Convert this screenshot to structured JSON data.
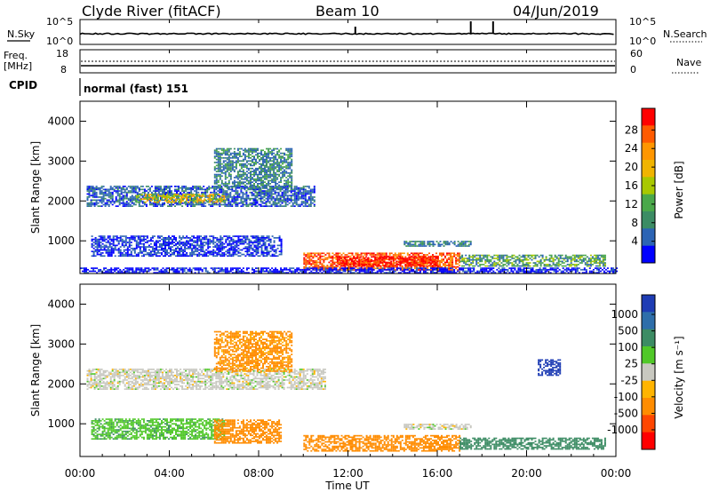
{
  "header": {
    "station": "Clyde River (fitACF)",
    "beam": "Beam 10",
    "date": "04/Jun/2019"
  },
  "nsky_panel": {
    "left_label": "N.Sky",
    "left_ticks": [
      "10^5",
      "10^0"
    ],
    "right_ticks": [
      "10^5",
      "10^0"
    ],
    "right_label": "N.Search",
    "spike_times_hr": [
      12.33,
      17.5,
      18.5
    ]
  },
  "freq_panel": {
    "left_label_1": "Freq.",
    "left_label_2": "[MHz]",
    "left_ticks": [
      "18",
      "8"
    ],
    "right_ticks": [
      "60",
      "0"
    ],
    "right_label": "Nave"
  },
  "cpid_panel": {
    "label": "CPID",
    "mode_text": "normal (fast) 151"
  },
  "x_axis": {
    "label": "Time UT",
    "ticks": [
      "00:00",
      "04:00",
      "08:00",
      "12:00",
      "16:00",
      "20:00",
      "00:00"
    ],
    "range_hr": [
      0,
      24
    ]
  },
  "power_panel": {
    "ylabel": "Slant Range [km]",
    "yticks": [
      "4000",
      "3000",
      "2000",
      "1000"
    ],
    "colorbar_label": "Power [dB]",
    "colorbar_ticks": [
      "28",
      "24",
      "20",
      "16",
      "12",
      "8",
      "4"
    ],
    "colorbar_colors": [
      "#ff0000",
      "#ff5a00",
      "#ff9600",
      "#f0b400",
      "#a8c800",
      "#4aa84a",
      "#3c8c64",
      "#2c64b4",
      "#0000ff"
    ]
  },
  "velocity_panel": {
    "ylabel": "Slant Range [km]",
    "yticks": [
      "4000",
      "3000",
      "2000",
      "1000"
    ],
    "colorbar_label": "Velocity [m s⁻¹]",
    "colorbar_ticks": [
      "1000",
      "500",
      "100",
      "25",
      "-25",
      "-100",
      "-500",
      "-1000"
    ],
    "colorbar_colors": [
      "#1e3cb4",
      "#2e6eaa",
      "#3c8c64",
      "#50c828",
      "#c8c8c0",
      "#ffb400",
      "#ff8c00",
      "#ff4600",
      "#ff0000"
    ]
  },
  "chart_data": {
    "type": "heatmap",
    "x_unit": "hours UT",
    "y_unit": "km",
    "xlim": [
      0,
      24
    ],
    "ylim": [
      180,
      4500
    ],
    "power_features": [
      {
        "t0": 0.3,
        "t1": 10.5,
        "r0": 1850,
        "r1": 2350,
        "dB": 10
      },
      {
        "t0": 2.5,
        "t1": 6.5,
        "r0": 1950,
        "r1": 2150,
        "dB": 18
      },
      {
        "t0": 0.5,
        "t1": 9.0,
        "r0": 600,
        "r1": 1100,
        "dB": 8
      },
      {
        "t0": 6.0,
        "t1": 9.5,
        "r0": 2300,
        "r1": 3300,
        "dB": 12
      },
      {
        "t0": 10.0,
        "t1": 17.0,
        "r0": 250,
        "r1": 700,
        "dB": 26
      },
      {
        "t0": 11.5,
        "t1": 16.0,
        "r0": 350,
        "r1": 600,
        "dB": 30
      },
      {
        "t0": 14.5,
        "t1": 17.5,
        "r0": 850,
        "r1": 1000,
        "dB": 12
      },
      {
        "t0": 17.0,
        "t1": 23.5,
        "r0": 350,
        "r1": 650,
        "dB": 14
      },
      {
        "t0": 0.0,
        "t1": 24.0,
        "r0": 180,
        "r1": 300,
        "dB": 6
      }
    ],
    "velocity_features": [
      {
        "t0": 0.3,
        "t1": 11.0,
        "r0": 1850,
        "r1": 2350,
        "v": 0
      },
      {
        "t0": 6.0,
        "t1": 9.5,
        "r0": 2300,
        "r1": 3300,
        "v": -120
      },
      {
        "t0": 0.5,
        "t1": 6.5,
        "r0": 600,
        "r1": 1100,
        "v": 80
      },
      {
        "t0": 6.0,
        "t1": 9.0,
        "r0": 500,
        "r1": 1100,
        "v": -300
      },
      {
        "t0": 10.0,
        "t1": 17.0,
        "r0": 300,
        "r1": 700,
        "v": -150
      },
      {
        "t0": 14.5,
        "t1": 17.5,
        "r0": 850,
        "r1": 1000,
        "v": 0
      },
      {
        "t0": 17.0,
        "t1": 23.5,
        "r0": 350,
        "r1": 650,
        "v": 200
      },
      {
        "t0": 20.5,
        "t1": 21.5,
        "r0": 2200,
        "r1": 2600,
        "v": 800
      }
    ]
  }
}
